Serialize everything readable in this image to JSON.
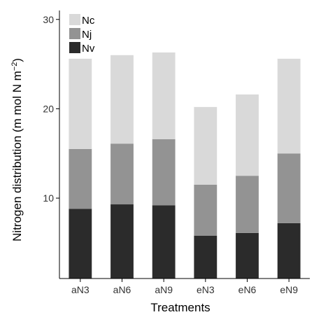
{
  "chart_data": {
    "type": "bar",
    "stacked": true,
    "categories": [
      "aN3",
      "aN6",
      "aN9",
      "eN3",
      "eN6",
      "eN9"
    ],
    "series": [
      {
        "name": "Nv",
        "values": [
          8.8,
          9.3,
          9.2,
          5.8,
          6.1,
          7.2
        ],
        "color": "#2b2b2b"
      },
      {
        "name": "Nj",
        "values": [
          6.7,
          6.8,
          7.4,
          5.7,
          6.4,
          7.8
        ],
        "color": "#939393"
      },
      {
        "name": "Nc",
        "values": [
          10.1,
          9.9,
          9.7,
          8.7,
          9.1,
          10.6
        ],
        "color": "#d9d9d9"
      }
    ],
    "legend_order": [
      "Nc",
      "Nj",
      "Nv"
    ],
    "legend_position": "top-left",
    "xlabel": "Treatments",
    "ylabel": "Nitrogen distribution (m mol N m",
    "ylabel_superscript": "−2",
    "ylabel_close": ")",
    "yticks": [
      10,
      20,
      30
    ],
    "ylim": [
      1,
      31
    ],
    "grid": false
  }
}
